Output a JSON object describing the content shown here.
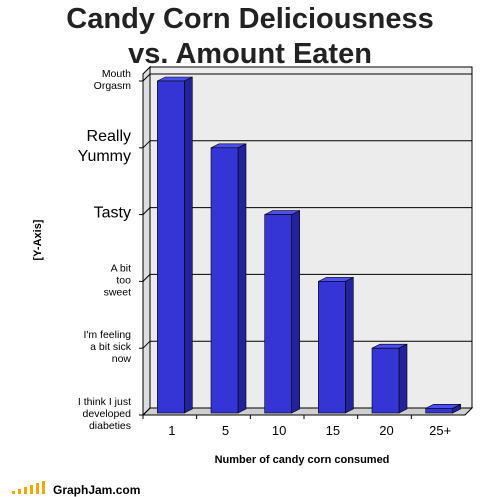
{
  "chart_data": {
    "type": "bar",
    "title_lines": [
      "Candy Corn Deliciousness",
      "vs. Amount Eaten"
    ],
    "xlabel": "Number of candy corn consumed",
    "ylabel": "[Y-Axis]",
    "categories": [
      "1",
      "5",
      "10",
      "15",
      "20",
      "25+"
    ],
    "values": [
      5,
      4,
      3,
      2,
      1,
      0.1
    ],
    "ylim": [
      0,
      5
    ],
    "y_ticks": [
      {
        "value": 0,
        "lines": [
          "I think I just",
          "developed",
          "diabeties"
        ],
        "size": "small"
      },
      {
        "value": 1,
        "lines": [
          "I'm feeling",
          "a bit sick",
          "now"
        ],
        "size": "small"
      },
      {
        "value": 2,
        "lines": [
          "A bit",
          "too",
          "sweet"
        ],
        "size": "small"
      },
      {
        "value": 3,
        "lines": [
          "Tasty"
        ],
        "size": "big"
      },
      {
        "value": 4,
        "lines": [
          "Really",
          "Yummy"
        ],
        "size": "big"
      },
      {
        "value": 5,
        "lines": [
          "Mouth",
          "Orgasm"
        ],
        "size": "small"
      }
    ],
    "grid": true,
    "bar_color": "#3535d6",
    "bar_top_color": "#4d4df0",
    "bar_side_color": "#22229a",
    "background_color": "#ececec"
  },
  "watermark": {
    "text": "GraphJam.com",
    "accent_color": "#f0a800"
  }
}
